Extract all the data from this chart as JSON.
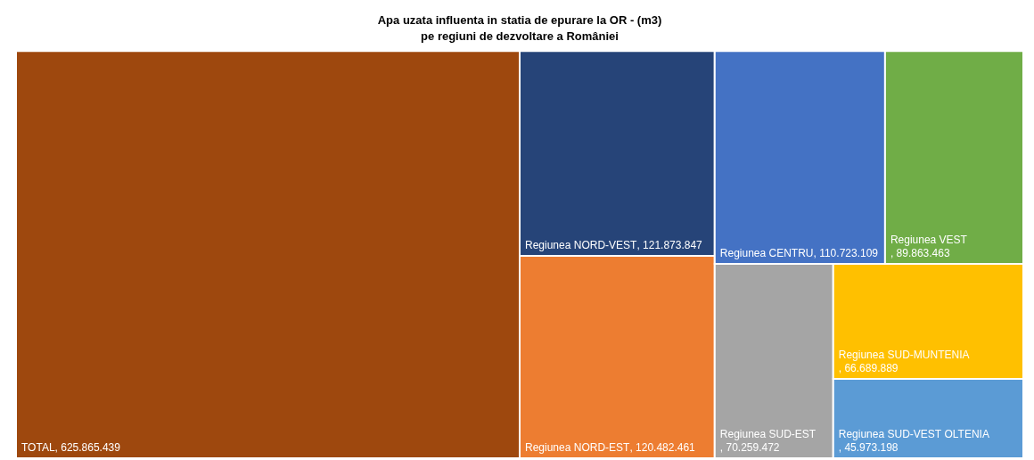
{
  "chart_data": {
    "type": "other",
    "title": "Apa uzata influenta in statia de epurare la OR - (m3)",
    "subtitle": "pe regiuni de dezvoltare a României",
    "categories": [
      "TOTAL",
      "Regiunea NORD-VEST",
      "Regiunea NORD-EST",
      "Regiunea CENTRU",
      "Regiunea VEST",
      "Regiunea SUD-EST",
      "Regiunea SUD-MUNTENIA",
      "Regiunea SUD-VEST OLTENIA"
    ],
    "values": [
      625865439,
      121873847,
      120482461,
      110723109,
      89863463,
      70259472,
      66689889,
      45973198
    ],
    "colors": [
      "#9e480e",
      "#264478",
      "#ed7d31",
      "#4472c4",
      "#70ad47",
      "#a5a5a5",
      "#ffc000",
      "#5b9bd5"
    ],
    "value_labels": [
      ", 625.865.439",
      ", 121.873.847",
      ", 120.482.461",
      ", 110.723.109",
      ", 89.863.463",
      ", 70.259.472",
      ", 66.689.889",
      ", 45.973.198"
    ]
  }
}
